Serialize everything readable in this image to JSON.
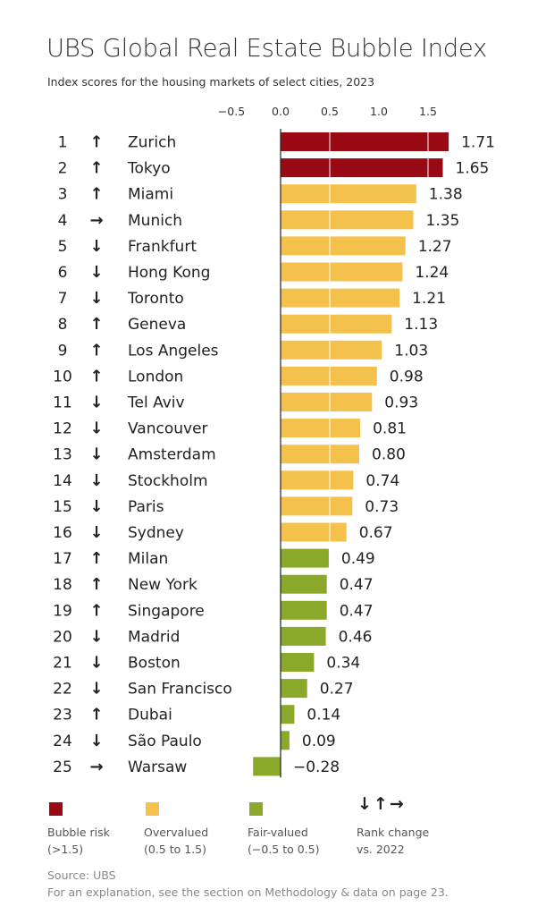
{
  "chart_data": {
    "type": "bar",
    "orientation": "horizontal",
    "title": "UBS Global Real Estate Bubble Index",
    "subtitle": "Index scores for the housing markets of select cities, 2023",
    "xlim": [
      -0.5,
      1.75
    ],
    "xticks": [
      "−0.5",
      "0.0",
      "0.5",
      "1.0",
      "1.5"
    ],
    "xtick_values": [
      -0.5,
      0,
      0.5,
      1.0,
      1.5
    ],
    "rows": [
      {
        "rank": "1",
        "change": "up",
        "city": "Zurich",
        "value": 1.71,
        "label": "1.71",
        "cat": "bubble"
      },
      {
        "rank": "2",
        "change": "up",
        "city": "Tokyo",
        "value": 1.65,
        "label": "1.65",
        "cat": "bubble"
      },
      {
        "rank": "3",
        "change": "up",
        "city": "Miami",
        "value": 1.38,
        "label": "1.38",
        "cat": "over"
      },
      {
        "rank": "4",
        "change": "right",
        "city": "Munich",
        "value": 1.35,
        "label": "1.35",
        "cat": "over"
      },
      {
        "rank": "5",
        "change": "down",
        "city": "Frankfurt",
        "value": 1.27,
        "label": "1.27",
        "cat": "over"
      },
      {
        "rank": "6",
        "change": "down",
        "city": "Hong Kong",
        "value": 1.24,
        "label": "1.24",
        "cat": "over"
      },
      {
        "rank": "7",
        "change": "down",
        "city": "Toronto",
        "value": 1.21,
        "label": "1.21",
        "cat": "over"
      },
      {
        "rank": "8",
        "change": "up",
        "city": "Geneva",
        "value": 1.13,
        "label": "1.13",
        "cat": "over"
      },
      {
        "rank": "9",
        "change": "up",
        "city": "Los Angeles",
        "value": 1.03,
        "label": "1.03",
        "cat": "over"
      },
      {
        "rank": "10",
        "change": "up",
        "city": "London",
        "value": 0.98,
        "label": "0.98",
        "cat": "over"
      },
      {
        "rank": "11",
        "change": "down",
        "city": "Tel Aviv",
        "value": 0.93,
        "label": "0.93",
        "cat": "over"
      },
      {
        "rank": "12",
        "change": "down",
        "city": "Vancouver",
        "value": 0.81,
        "label": "0.81",
        "cat": "over"
      },
      {
        "rank": "13",
        "change": "down",
        "city": "Amsterdam",
        "value": 0.8,
        "label": "0.80",
        "cat": "over"
      },
      {
        "rank": "14",
        "change": "down",
        "city": "Stockholm",
        "value": 0.74,
        "label": "0.74",
        "cat": "over"
      },
      {
        "rank": "15",
        "change": "down",
        "city": "Paris",
        "value": 0.73,
        "label": "0.73",
        "cat": "over"
      },
      {
        "rank": "16",
        "change": "down",
        "city": "Sydney",
        "value": 0.67,
        "label": "0.67",
        "cat": "over"
      },
      {
        "rank": "17",
        "change": "up",
        "city": "Milan",
        "value": 0.49,
        "label": "0.49",
        "cat": "fair"
      },
      {
        "rank": "18",
        "change": "up",
        "city": "New York",
        "value": 0.47,
        "label": "0.47",
        "cat": "fair"
      },
      {
        "rank": "19",
        "change": "up",
        "city": "Singapore",
        "value": 0.47,
        "label": "0.47",
        "cat": "fair"
      },
      {
        "rank": "20",
        "change": "down",
        "city": "Madrid",
        "value": 0.46,
        "label": "0.46",
        "cat": "fair"
      },
      {
        "rank": "21",
        "change": "down",
        "city": "Boston",
        "value": 0.34,
        "label": "0.34",
        "cat": "fair"
      },
      {
        "rank": "22",
        "change": "down",
        "city": "San Francisco",
        "value": 0.27,
        "label": "0.27",
        "cat": "fair"
      },
      {
        "rank": "23",
        "change": "up",
        "city": "Dubai",
        "value": 0.14,
        "label": "0.14",
        "cat": "fair"
      },
      {
        "rank": "24",
        "change": "down",
        "city": "São Paulo",
        "value": 0.09,
        "label": "0.09",
        "cat": "fair"
      },
      {
        "rank": "25",
        "change": "right",
        "city": "Warsaw",
        "value": -0.28,
        "label": "−0.28",
        "cat": "fair"
      }
    ],
    "colors": {
      "bubble": "#9a0a14",
      "over": "#f4c14d",
      "fair": "#8aa92a"
    },
    "arrows": {
      "up": "↑",
      "down": "↓",
      "right": "→"
    },
    "legend": [
      {
        "cat": "bubble",
        "line1": "Bubble risk",
        "line2": "(>1.5)"
      },
      {
        "cat": "over",
        "line1": "Overvalued",
        "line2": "(0.5 to 1.5)"
      },
      {
        "cat": "fair",
        "line1": "Fair-valued",
        "line2": "(−0.5 to 0.5)"
      }
    ],
    "rank_legend": {
      "arrows": "↓↑→",
      "line1": "Rank change",
      "line2": "vs. 2022"
    }
  },
  "footer": {
    "source": "Source: UBS",
    "note": "For an explanation, see the section on Methodology & data on page 23."
  }
}
